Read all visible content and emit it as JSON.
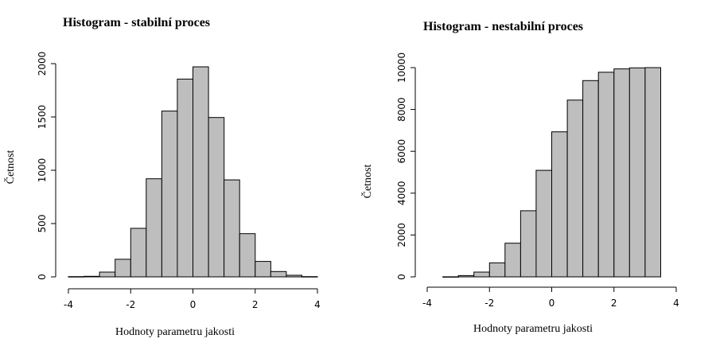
{
  "chart_data": [
    {
      "type": "bar",
      "title": "Histogram - stabilní proces",
      "xlabel": "Hodnoty parametru jakosti",
      "ylabel": "Četnost",
      "bin_edges": [
        -4,
        -3.5,
        -3,
        -2.5,
        -2,
        -1.5,
        -1,
        -0.5,
        0,
        0.5,
        1,
        1.5,
        2,
        2.5,
        3,
        3.5,
        4
      ],
      "values": [
        2,
        5,
        45,
        165,
        455,
        920,
        1555,
        1855,
        1970,
        1495,
        910,
        405,
        145,
        50,
        15,
        2
      ],
      "xlim": [
        -4,
        4.3
      ],
      "ylim": [
        0,
        2000
      ],
      "xticks": [
        -4,
        -2,
        0,
        2,
        4
      ],
      "yticks": [
        0,
        500,
        1000,
        1500,
        2000
      ],
      "xtick_labels": [
        "-4",
        "-2",
        "0",
        "2",
        "4"
      ],
      "ytick_labels": [
        "0",
        "500",
        "1000",
        "1500",
        "2000"
      ]
    },
    {
      "type": "bar",
      "title": "Histogram - nestabilní proces",
      "xlabel": "Hodnoty parametru jakosti",
      "ylabel": "Četnost",
      "bin_edges": [
        -3.5,
        -3,
        -2.5,
        -2,
        -1.5,
        -1,
        -0.5,
        0,
        0.5,
        1,
        1.5,
        2,
        2.5,
        3,
        3.5
      ],
      "values": [
        5,
        60,
        230,
        670,
        1610,
        3160,
        5090,
        6930,
        8450,
        9380,
        9780,
        9940,
        9990,
        10000
      ],
      "xlim": [
        -4,
        4
      ],
      "ylim": [
        0,
        10000
      ],
      "xticks": [
        -4,
        -2,
        0,
        2,
        4
      ],
      "yticks": [
        0,
        2000,
        4000,
        6000,
        8000,
        10000
      ],
      "xtick_labels": [
        "-4",
        "-2",
        "0",
        "2",
        "4"
      ],
      "ytick_labels": [
        "0",
        "2000",
        "4000",
        "6000",
        "8000",
        "10000"
      ]
    }
  ]
}
